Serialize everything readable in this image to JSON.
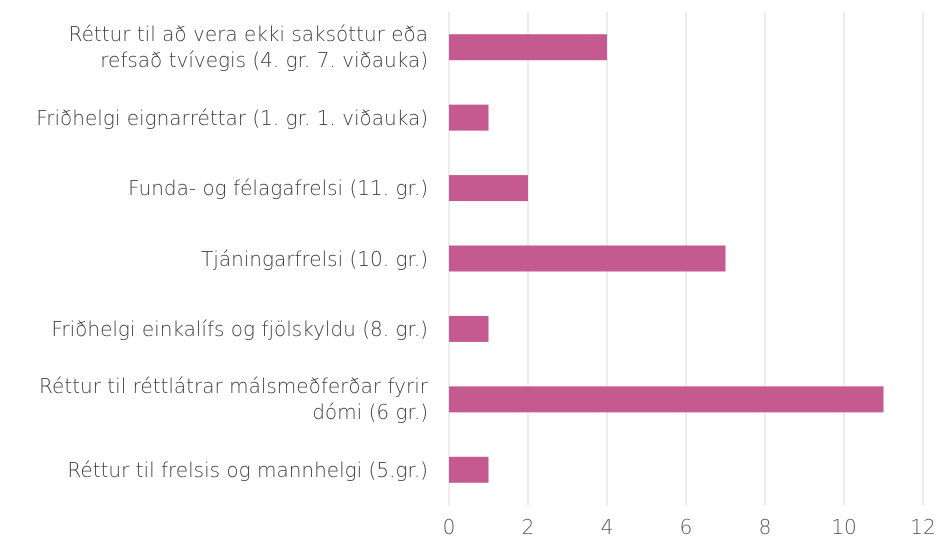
{
  "chart_data": {
    "type": "bar",
    "orientation": "horizontal",
    "categories": [
      "Réttur til að vera ekki saksóttur eða refsað tvívegis (4. gr. 7. viðauka)",
      "Friðhelgi eignarréttar (1. gr. 1. viðauka)",
      "Funda- og félagafrelsi (11. gr.)",
      "Tjáningarfrelsi (10. gr.)",
      "Friðhelgi einkalífs og fjölskyldu (8. gr.)",
      "Réttur til réttlátrar málsmeðferðar fyrir dómi (6 gr.)",
      "Réttur til frelsis og mannhelgi (5.gr.)"
    ],
    "values": [
      4,
      1,
      2,
      7,
      1,
      11,
      1
    ],
    "color": "#c55a91",
    "xlim": [
      0,
      12
    ],
    "xticks": [
      0,
      2,
      4,
      6,
      8,
      10,
      12
    ],
    "grid": true
  }
}
